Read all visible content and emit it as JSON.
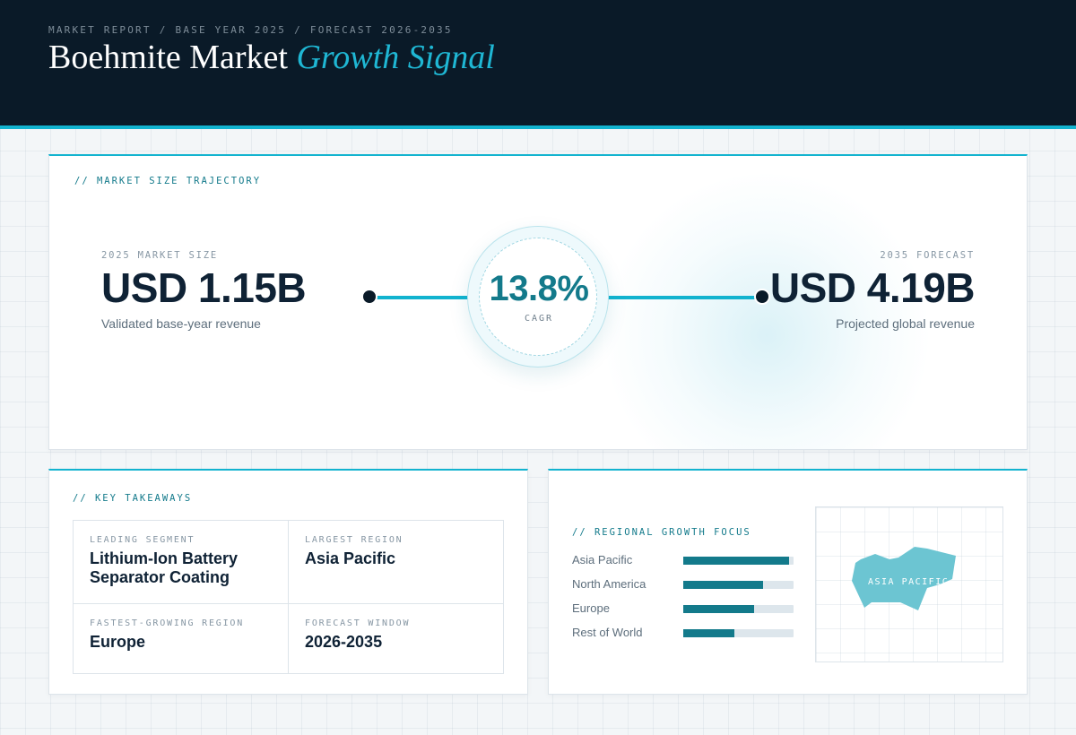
{
  "header": {
    "breadcrumb": [
      "MARKET REPORT",
      "BASE YEAR 2025",
      "FORECAST 2026-2035"
    ],
    "breadcrumb_separator": "/",
    "title_main": "Boehmite Market",
    "title_accent": "Growth Signal"
  },
  "trajectory": {
    "section_label": "// MARKET SIZE TRAJECTORY",
    "start": {
      "eyebrow": "2025 MARKET SIZE",
      "value": "USD 1.15B",
      "caption": "Validated base-year revenue"
    },
    "end": {
      "eyebrow": "2035 FORECAST",
      "value": "USD 4.19B",
      "caption": "Projected global revenue"
    },
    "cagr_value": "13.8%",
    "cagr_label": "CAGR"
  },
  "takeaways": {
    "section_label": "// KEY TAKEAWAYS",
    "items": [
      {
        "label": "LEADING SEGMENT",
        "value": "Lithium-Ion Battery Separator Coating"
      },
      {
        "label": "LARGEST REGION",
        "value": "Asia Pacific"
      },
      {
        "label": "FASTEST-GROWING REGION",
        "value": "Europe"
      },
      {
        "label": "FORECAST WINDOW",
        "value": "2026-2035"
      }
    ]
  },
  "regional": {
    "section_label": "// REGIONAL GROWTH FOCUS",
    "map_label": "ASIA PACIFIC"
  },
  "colors": {
    "header_bg": "#0a1a28",
    "accent": "#12b3cf",
    "teal_dark": "#137a8b",
    "map_shape": "#6cc5d2",
    "bar_track": "#dde6ec"
  },
  "chart_data": {
    "type": "bar",
    "orientation": "horizontal",
    "title": "// REGIONAL GROWTH FOCUS",
    "categories": [
      "Asia Pacific",
      "North America",
      "Europe",
      "Rest of World"
    ],
    "values": [
      96,
      72,
      64,
      46
    ],
    "ylim": [
      0,
      100
    ],
    "grid": false
  }
}
